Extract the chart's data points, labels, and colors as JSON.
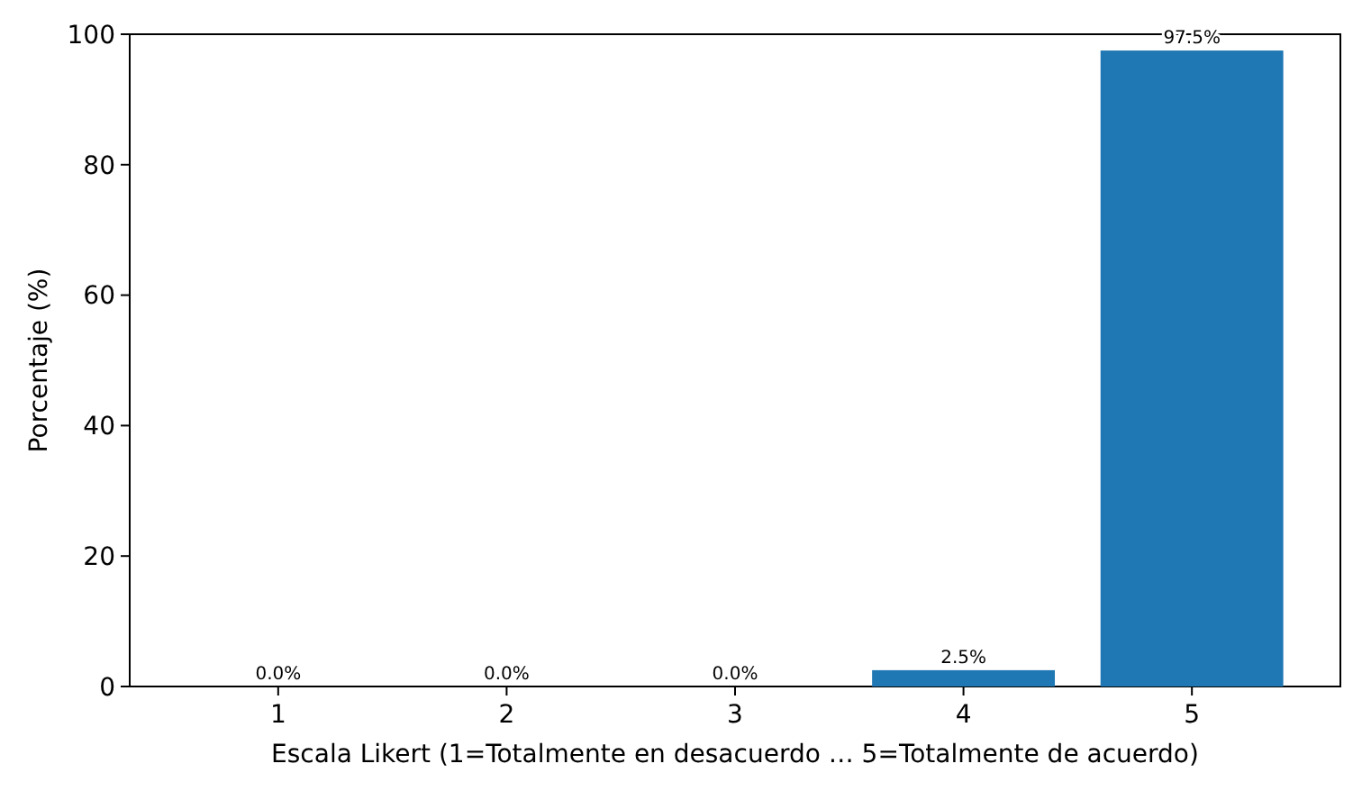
{
  "chart_data": {
    "type": "bar",
    "xlabel": "Escala Likert (1=Totalmente en desacuerdo … 5=Totalmente de acuerdo)",
    "ylabel": "Porcentaje (%)",
    "categories": [
      "1",
      "2",
      "3",
      "4",
      "5"
    ],
    "values": [
      0,
      0,
      0,
      2.5,
      97.5
    ],
    "value_labels": [
      "0.0%",
      "0.0%",
      "0.0%",
      "2.5%",
      "97.5%"
    ],
    "color": "#1f77b4",
    "ylim": [
      0,
      100
    ],
    "yticks": [
      0,
      20,
      40,
      60,
      80,
      100
    ],
    "grid": false
  }
}
